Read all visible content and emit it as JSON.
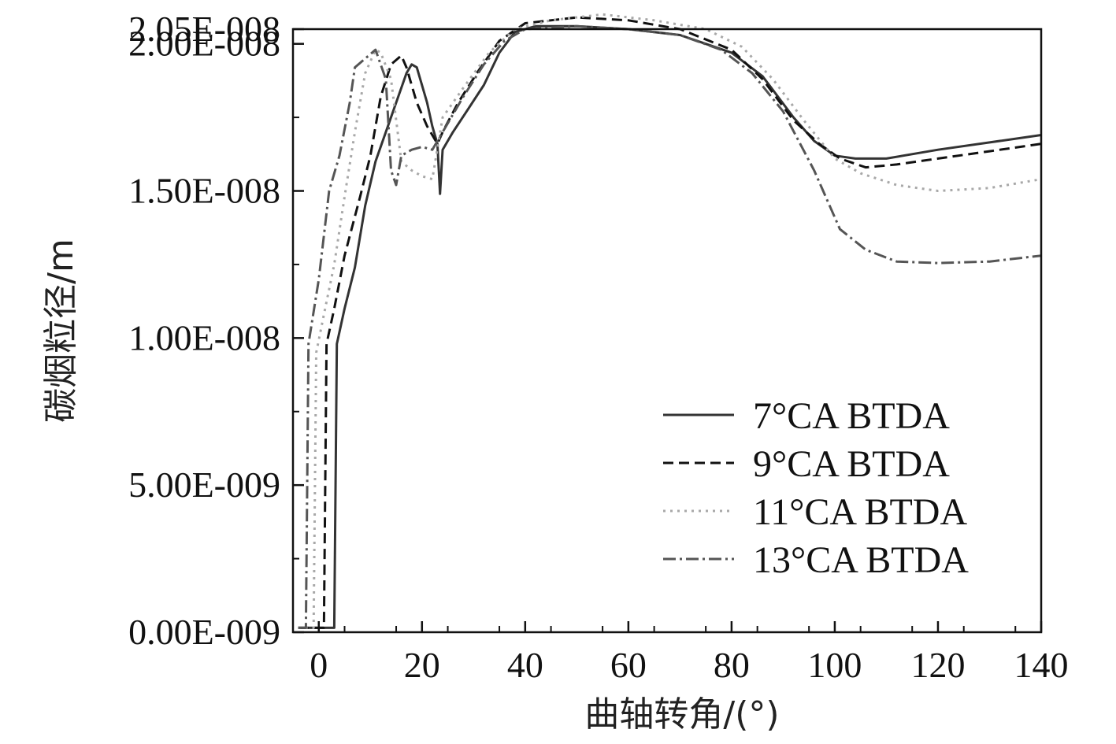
{
  "chart_data": {
    "type": "line",
    "title": "",
    "xlabel": "曲轴转角/(°)",
    "ylabel": "碳烟粒径/m",
    "xlim": [
      -5,
      140
    ],
    "ylim": [
      0,
      2.05e-08
    ],
    "x_ticks": [
      0,
      20,
      40,
      60,
      80,
      100,
      120,
      140
    ],
    "x_tick_labels": [
      "0",
      "20",
      "40",
      "60",
      "80",
      "100",
      "120",
      "140"
    ],
    "y_ticks": [
      0,
      5e-09,
      1e-08,
      1.5e-08,
      2e-08,
      2.05e-08
    ],
    "y_tick_labels": [
      "0.00E-009",
      "5.00E-009",
      "1.00E-008",
      "1.50E-008",
      "2.00E-008",
      "2.05E-008"
    ],
    "grid": false,
    "legend_position": "bottom-right",
    "series": [
      {
        "name": "7°CA BTDA",
        "color": "#333333",
        "dash": "solid",
        "points": [
          [
            -4,
            1.5e-10
          ],
          [
            3,
            1.5e-10
          ],
          [
            3.5,
            9.8e-09
          ],
          [
            5,
            1.1e-08
          ],
          [
            7,
            1.24e-08
          ],
          [
            9,
            1.45e-08
          ],
          [
            11,
            1.6e-08
          ],
          [
            13,
            1.7e-08
          ],
          [
            15,
            1.8e-08
          ],
          [
            17,
            1.9e-08
          ],
          [
            18,
            1.93e-08
          ],
          [
            19,
            1.92e-08
          ],
          [
            21,
            1.8e-08
          ],
          [
            22,
            1.72e-08
          ],
          [
            23,
            1.66e-08
          ],
          [
            23.5,
            1.49e-08
          ],
          [
            24,
            1.64e-08
          ],
          [
            26,
            1.7e-08
          ],
          [
            29,
            1.78e-08
          ],
          [
            32,
            1.86e-08
          ],
          [
            35,
            1.97e-08
          ],
          [
            38,
            2.04e-08
          ],
          [
            42,
            2.06e-08
          ],
          [
            50,
            2.06e-08
          ],
          [
            60,
            2.05e-08
          ],
          [
            70,
            2.03e-08
          ],
          [
            80,
            1.97e-08
          ],
          [
            86,
            1.89e-08
          ],
          [
            92,
            1.75e-08
          ],
          [
            96,
            1.67e-08
          ],
          [
            100,
            1.62e-08
          ],
          [
            104,
            1.61e-08
          ],
          [
            110,
            1.61e-08
          ],
          [
            120,
            1.64e-08
          ],
          [
            130,
            1.665e-08
          ],
          [
            140,
            1.69e-08
          ]
        ]
      },
      {
        "name": "9°CA BTDA",
        "color": "#111111",
        "dash": "13,7",
        "points": [
          [
            -4,
            1.5e-10
          ],
          [
            1,
            1.5e-10
          ],
          [
            1.5,
            9.8e-09
          ],
          [
            3,
            1.1e-08
          ],
          [
            5,
            1.28e-08
          ],
          [
            8,
            1.48e-08
          ],
          [
            10,
            1.62e-08
          ],
          [
            12,
            1.82e-08
          ],
          [
            14,
            1.93e-08
          ],
          [
            16,
            1.96e-08
          ],
          [
            17,
            1.92e-08
          ],
          [
            19,
            1.8e-08
          ],
          [
            21,
            1.72e-08
          ],
          [
            23,
            1.66e-08
          ],
          [
            24,
            1.7e-08
          ],
          [
            27,
            1.8e-08
          ],
          [
            31,
            1.91e-08
          ],
          [
            35,
            2.01e-08
          ],
          [
            40,
            2.07e-08
          ],
          [
            50,
            2.09e-08
          ],
          [
            60,
            2.08e-08
          ],
          [
            70,
            2.05e-08
          ],
          [
            80,
            1.98e-08
          ],
          [
            86,
            1.88e-08
          ],
          [
            92,
            1.74e-08
          ],
          [
            97,
            1.66e-08
          ],
          [
            101,
            1.61e-08
          ],
          [
            106,
            1.58e-08
          ],
          [
            112,
            1.59e-08
          ],
          [
            120,
            1.61e-08
          ],
          [
            130,
            1.635e-08
          ],
          [
            140,
            1.66e-08
          ]
        ]
      },
      {
        "name": "11°CA BTDA",
        "color": "#a8a8a8",
        "dash": "3,6",
        "points": [
          [
            -4,
            1.5e-10
          ],
          [
            -1,
            1.5e-10
          ],
          [
            -0.5,
            9.5e-09
          ],
          [
            1,
            1.08e-08
          ],
          [
            3,
            1.25e-08
          ],
          [
            5,
            1.48e-08
          ],
          [
            7,
            1.7e-08
          ],
          [
            9,
            1.9e-08
          ],
          [
            11,
            1.98e-08
          ],
          [
            12,
            1.97e-08
          ],
          [
            14,
            1.88e-08
          ],
          [
            16,
            1.6e-08
          ],
          [
            18,
            1.57e-08
          ],
          [
            20,
            1.55e-08
          ],
          [
            22,
            1.54e-08
          ],
          [
            24,
            1.75e-08
          ],
          [
            28,
            1.85e-08
          ],
          [
            33,
            1.97e-08
          ],
          [
            38,
            2.05e-08
          ],
          [
            45,
            2.08e-08
          ],
          [
            55,
            2.1e-08
          ],
          [
            65,
            2.08e-08
          ],
          [
            75,
            2.05e-08
          ],
          [
            82,
            1.99e-08
          ],
          [
            88,
            1.88e-08
          ],
          [
            94,
            1.74e-08
          ],
          [
            100,
            1.61e-08
          ],
          [
            105,
            1.56e-08
          ],
          [
            112,
            1.52e-08
          ],
          [
            120,
            1.5e-08
          ],
          [
            130,
            1.51e-08
          ],
          [
            140,
            1.54e-08
          ]
        ]
      },
      {
        "name": "13°CA BTDA",
        "color": "#555555",
        "dash": "16,5,3,5",
        "points": [
          [
            -4,
            1.5e-10
          ],
          [
            -2.5,
            1.5e-10
          ],
          [
            -2,
            9.8e-09
          ],
          [
            0,
            1.2e-08
          ],
          [
            2,
            1.5e-08
          ],
          [
            4,
            1.62e-08
          ],
          [
            6,
            1.8e-08
          ],
          [
            7,
            1.92e-08
          ],
          [
            9,
            1.95e-08
          ],
          [
            11,
            1.98e-08
          ],
          [
            13,
            1.88e-08
          ],
          [
            14,
            1.57e-08
          ],
          [
            15,
            1.52e-08
          ],
          [
            16,
            1.62e-08
          ],
          [
            18,
            1.64e-08
          ],
          [
            20,
            1.65e-08
          ],
          [
            22,
            1.64e-08
          ],
          [
            24,
            1.7e-08
          ],
          [
            28,
            1.82e-08
          ],
          [
            32,
            1.93e-08
          ],
          [
            36,
            2.01e-08
          ],
          [
            40,
            2.05e-08
          ],
          [
            50,
            2.06e-08
          ],
          [
            60,
            2.05e-08
          ],
          [
            70,
            2.03e-08
          ],
          [
            78,
            1.98e-08
          ],
          [
            84,
            1.9e-08
          ],
          [
            90,
            1.77e-08
          ],
          [
            96,
            1.57e-08
          ],
          [
            101,
            1.37e-08
          ],
          [
            106,
            1.3e-08
          ],
          [
            112,
            1.26e-08
          ],
          [
            120,
            1.255e-08
          ],
          [
            130,
            1.26e-08
          ],
          [
            140,
            1.28e-08
          ]
        ]
      }
    ]
  }
}
